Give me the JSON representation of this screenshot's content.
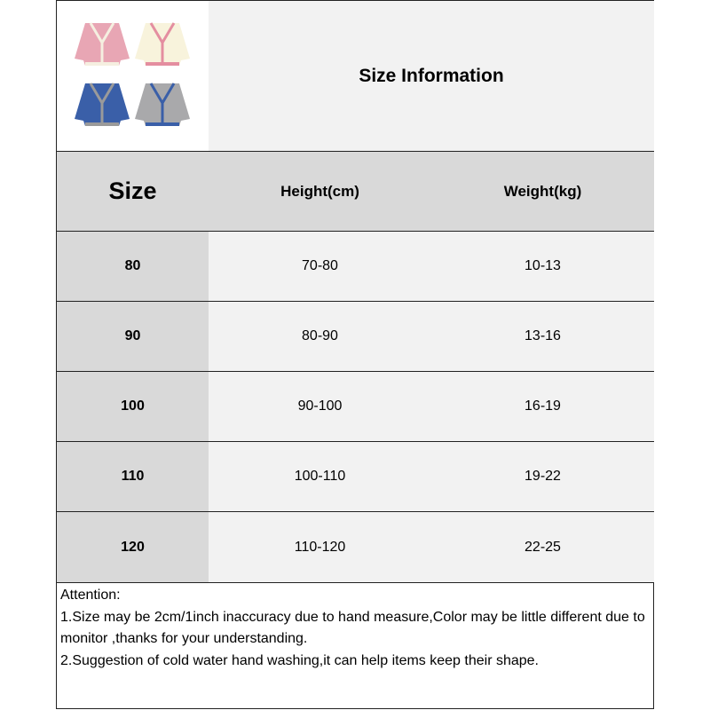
{
  "title": "Size Information",
  "headers": [
    "Size",
    "Height(cm)",
    "Weight(kg)"
  ],
  "rows": [
    {
      "size": "80",
      "height": "70-80",
      "weight": "10-13"
    },
    {
      "size": "90",
      "height": "80-90",
      "weight": "13-16"
    },
    {
      "size": "100",
      "height": "90-100",
      "weight": "16-19"
    },
    {
      "size": "110",
      "height": "100-110",
      "weight": "19-22"
    },
    {
      "size": "120",
      "height": "110-120",
      "weight": "22-25"
    }
  ],
  "notes": [
    "Attention:",
    "1.Size may be 2cm/1inch inaccuracy due to hand measure,Color may be little different due to monitor ,thanks for your understanding.",
    "2.Suggestion of cold water hand washing,it can help items keep their shape."
  ],
  "product_colors": [
    "#e8a6b4",
    "#f8f3dc",
    "#3a5fa8",
    "#a9a9ab"
  ]
}
